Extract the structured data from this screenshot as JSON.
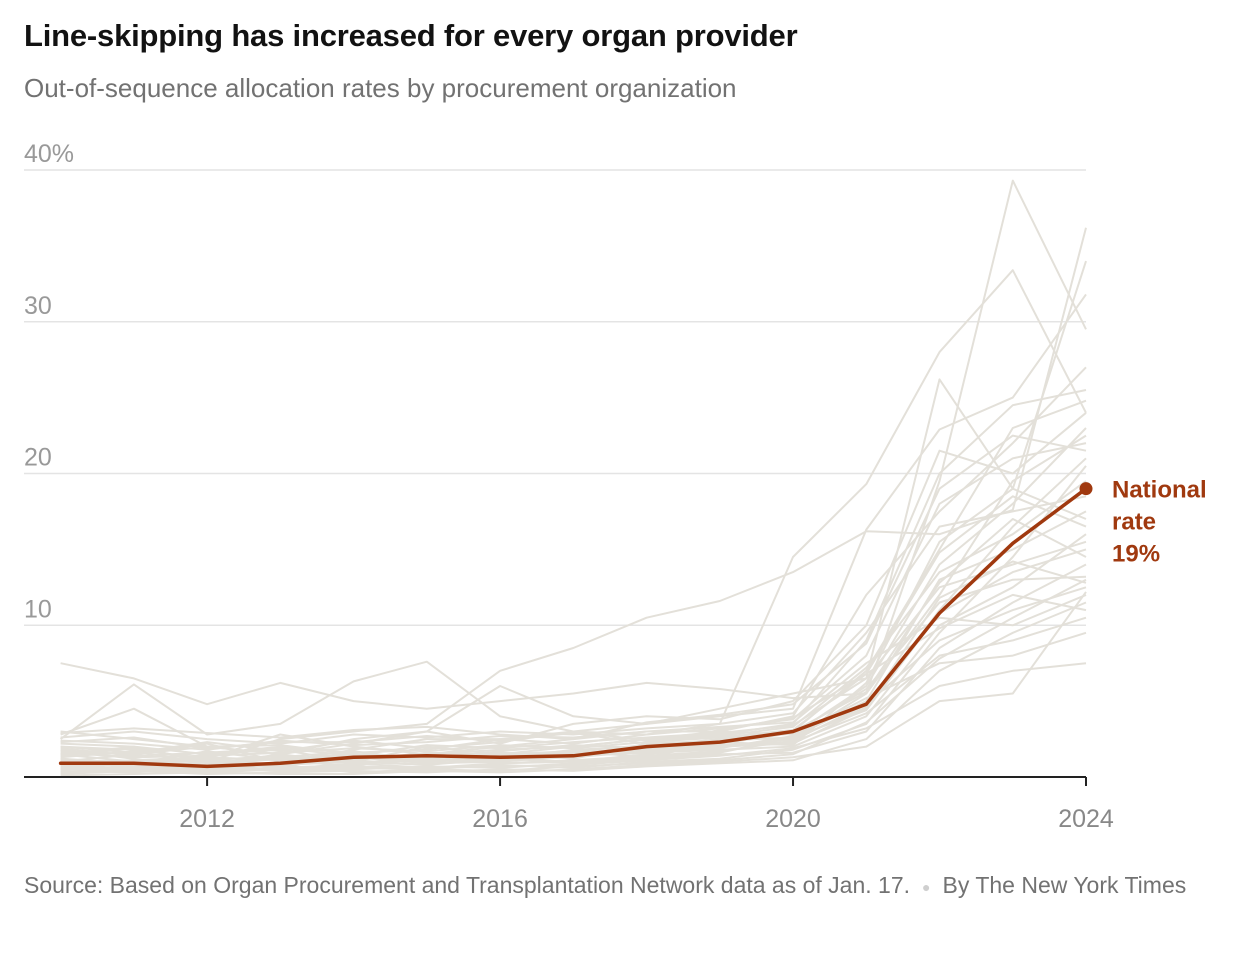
{
  "header": {
    "title": "Line-skipping has increased for every organ provider",
    "subtitle": "Out-of-sequence allocation rates by procurement organization"
  },
  "chart_data": {
    "type": "line",
    "title": "Line-skipping has increased for every organ provider",
    "subtitle": "Out-of-sequence allocation rates by procurement organization",
    "xlabel": "",
    "ylabel": "",
    "xlim": [
      2009.5,
      2024
    ],
    "ylim": [
      0,
      40
    ],
    "x_ticks": [
      "2012",
      "2016",
      "2020",
      "2024"
    ],
    "x_tick_values": [
      2012,
      2016,
      2020,
      2024
    ],
    "y_ticks": [
      "40%",
      "30",
      "20",
      "10"
    ],
    "y_tick_values": [
      40,
      30,
      20,
      10
    ],
    "grid": true,
    "x": [
      2010,
      2011,
      2012,
      2013,
      2014,
      2015,
      2016,
      2017,
      2018,
      2019,
      2020,
      2021,
      2022,
      2023,
      2024
    ],
    "highlight": {
      "values": [
        0.9,
        0.9,
        0.7,
        0.9,
        1.3,
        1.4,
        1.3,
        1.4,
        2.0,
        2.3,
        3.0,
        4.8,
        10.8,
        15.4,
        19.0
      ],
      "label_lines": [
        "National",
        "rate",
        "19%"
      ],
      "color": "#a0390f"
    },
    "background_series": [
      [
        7.5,
        6.5,
        4.8,
        6.2,
        5.0,
        4.5,
        5.0,
        5.5,
        6.2,
        5.8,
        5.2,
        5.5,
        19.5,
        39.3,
        29.5
      ],
      [
        2.5,
        6.1,
        2.8,
        3.5,
        6.3,
        7.6,
        4.0,
        3.0,
        2.8,
        3.5,
        14.5,
        19.3,
        28.0,
        33.4,
        24.0
      ],
      [
        1.5,
        2.0,
        1.0,
        2.5,
        3.0,
        3.5,
        7.0,
        8.5,
        10.5,
        11.6,
        13.5,
        16.2,
        16.0,
        17.6,
        36.2
      ],
      [
        2.8,
        4.5,
        2.0,
        1.5,
        2.2,
        3.0,
        6.0,
        4.0,
        3.5,
        4.5,
        5.5,
        6.5,
        26.2,
        19.0,
        34.0
      ],
      [
        1.0,
        1.5,
        2.2,
        1.0,
        1.8,
        2.5,
        2.5,
        3.0,
        3.5,
        4.0,
        4.5,
        16.3,
        22.9,
        25.0,
        31.8
      ],
      [
        2.0,
        1.8,
        1.2,
        2.8,
        2.0,
        1.5,
        2.0,
        2.5,
        3.0,
        3.0,
        4.0,
        12.0,
        17.5,
        22.0,
        27.0
      ],
      [
        1.2,
        0.8,
        1.5,
        1.8,
        1.0,
        2.0,
        1.5,
        2.0,
        2.5,
        2.8,
        3.5,
        9.0,
        20.0,
        24.5,
        25.5
      ],
      [
        0.5,
        1.0,
        0.8,
        1.2,
        1.5,
        1.0,
        1.2,
        1.8,
        2.0,
        2.5,
        3.0,
        7.0,
        15.0,
        23.0,
        24.8
      ],
      [
        3.0,
        2.5,
        2.0,
        1.5,
        2.5,
        3.0,
        2.2,
        3.5,
        4.0,
        3.8,
        5.0,
        10.0,
        21.5,
        20.0,
        24.0
      ],
      [
        1.8,
        1.2,
        0.5,
        1.0,
        1.2,
        1.5,
        1.8,
        2.0,
        2.5,
        3.0,
        2.8,
        6.0,
        14.0,
        18.0,
        23.0
      ],
      [
        0.8,
        0.5,
        1.0,
        0.6,
        0.8,
        1.2,
        1.0,
        1.5,
        1.8,
        2.0,
        2.5,
        5.5,
        12.0,
        19.5,
        22.5
      ],
      [
        2.2,
        2.0,
        1.5,
        2.0,
        1.6,
        1.8,
        2.5,
        2.2,
        2.8,
        3.2,
        3.8,
        8.0,
        18.0,
        21.0,
        22.0
      ],
      [
        1.5,
        1.0,
        1.2,
        0.8,
        1.0,
        0.8,
        1.2,
        1.0,
        1.5,
        2.0,
        2.2,
        4.5,
        11.0,
        16.5,
        21.0
      ],
      [
        0.3,
        0.5,
        0.3,
        0.5,
        0.6,
        0.5,
        0.8,
        0.6,
        1.0,
        1.2,
        1.8,
        3.5,
        9.5,
        14.5,
        20.5
      ],
      [
        2.6,
        3.0,
        2.5,
        2.2,
        2.8,
        2.6,
        3.0,
        2.8,
        3.2,
        3.5,
        4.2,
        9.5,
        16.5,
        17.5,
        18.5
      ],
      [
        1.0,
        0.6,
        0.8,
        1.5,
        0.9,
        1.3,
        1.6,
        1.2,
        2.2,
        2.4,
        2.6,
        5.0,
        13.0,
        15.0,
        17.5
      ],
      [
        0.6,
        0.9,
        1.1,
        0.7,
        1.3,
        0.9,
        1.0,
        1.4,
        1.6,
        1.8,
        2.0,
        4.0,
        10.0,
        12.5,
        16.0
      ],
      [
        1.9,
        1.4,
        1.6,
        1.9,
        1.4,
        2.1,
        1.9,
        2.3,
        2.6,
        2.9,
        3.4,
        6.5,
        12.5,
        14.0,
        15.5
      ],
      [
        0.4,
        0.3,
        0.6,
        0.4,
        0.5,
        0.7,
        0.6,
        0.9,
        1.2,
        1.5,
        1.6,
        3.0,
        8.5,
        11.5,
        14.0
      ],
      [
        1.3,
        1.7,
        0.9,
        1.3,
        1.7,
        1.1,
        1.4,
        1.7,
        2.1,
        2.2,
        2.9,
        5.8,
        11.5,
        13.0,
        13.2
      ],
      [
        0.9,
        1.1,
        1.3,
        1.1,
        0.7,
        1.6,
        0.9,
        1.1,
        1.4,
        1.7,
        2.4,
        4.8,
        9.0,
        11.0,
        12.5
      ],
      [
        2.4,
        2.2,
        1.8,
        2.4,
        2.1,
        2.3,
        2.7,
        2.6,
        3.0,
        3.3,
        3.6,
        7.5,
        10.5,
        10.0,
        12.0
      ],
      [
        0.2,
        0.4,
        0.2,
        0.3,
        0.4,
        0.3,
        0.5,
        0.4,
        0.7,
        0.9,
        1.1,
        2.5,
        7.0,
        9.5,
        11.5
      ],
      [
        1.6,
        1.3,
        1.4,
        1.6,
        1.9,
        1.7,
        2.1,
        1.9,
        2.3,
        2.6,
        3.1,
        6.8,
        9.8,
        12.0,
        11.0
      ],
      [
        0.7,
        0.8,
        0.6,
        0.9,
        1.1,
        0.8,
        1.3,
        1.6,
        1.9,
        2.1,
        2.3,
        4.2,
        8.0,
        9.0,
        10.5
      ],
      [
        1.1,
        1.0,
        1.0,
        1.2,
        1.3,
        1.4,
        1.1,
        1.3,
        1.7,
        1.9,
        2.7,
        5.2,
        7.5,
        8.0,
        9.5
      ],
      [
        0.5,
        0.6,
        0.4,
        0.6,
        0.7,
        0.6,
        0.7,
        0.8,
        1.1,
        1.4,
        1.9,
        3.2,
        6.0,
        7.0,
        7.5
      ],
      [
        0.1,
        0.2,
        0.3,
        0.2,
        0.2,
        0.4,
        0.3,
        0.5,
        0.8,
        1.0,
        1.3,
        2.0,
        5.0,
        5.5,
        12.2
      ],
      [
        2.0,
        1.6,
        2.3,
        1.7,
        2.4,
        1.9,
        2.3,
        3.0,
        2.4,
        2.7,
        3.3,
        7.2,
        13.5,
        16.0,
        19.5
      ],
      [
        1.4,
        1.9,
        1.1,
        1.4,
        1.1,
        1.6,
        1.5,
        1.7,
        1.3,
        2.3,
        2.1,
        6.2,
        15.5,
        19.0,
        17.0
      ],
      [
        0.8,
        0.4,
        0.7,
        0.5,
        0.9,
        0.6,
        0.9,
        1.0,
        1.3,
        1.6,
        2.6,
        4.4,
        10.8,
        13.5,
        15.0
      ],
      [
        2.9,
        3.2,
        2.9,
        2.6,
        3.1,
        3.3,
        2.8,
        2.5,
        3.6,
        4.1,
        4.8,
        8.8,
        19.0,
        22.5,
        21.5
      ],
      [
        1.7,
        1.5,
        2.0,
        2.1,
        1.5,
        1.2,
        1.7,
        2.1,
        1.9,
        2.5,
        3.0,
        5.6,
        12.8,
        17.0,
        14.5
      ],
      [
        0.3,
        0.7,
        0.5,
        0.8,
        0.3,
        0.5,
        0.4,
        0.7,
        0.9,
        1.1,
        1.5,
        3.6,
        7.8,
        10.5,
        13.0
      ],
      [
        1.2,
        0.9,
        1.7,
        1.1,
        1.4,
        1.0,
        1.6,
        1.4,
        1.6,
        2.0,
        2.5,
        4.6,
        11.8,
        14.2,
        12.8
      ],
      [
        2.3,
        2.6,
        1.9,
        2.3,
        2.3,
        2.7,
        2.4,
        2.9,
        2.2,
        3.1,
        3.9,
        6.8,
        14.8,
        18.5,
        16.5
      ]
    ]
  },
  "source": {
    "text": "Source: Based on Organ Procurement and Transplantation Network data as of Jan. 17.",
    "credit": "By The New York Times"
  }
}
